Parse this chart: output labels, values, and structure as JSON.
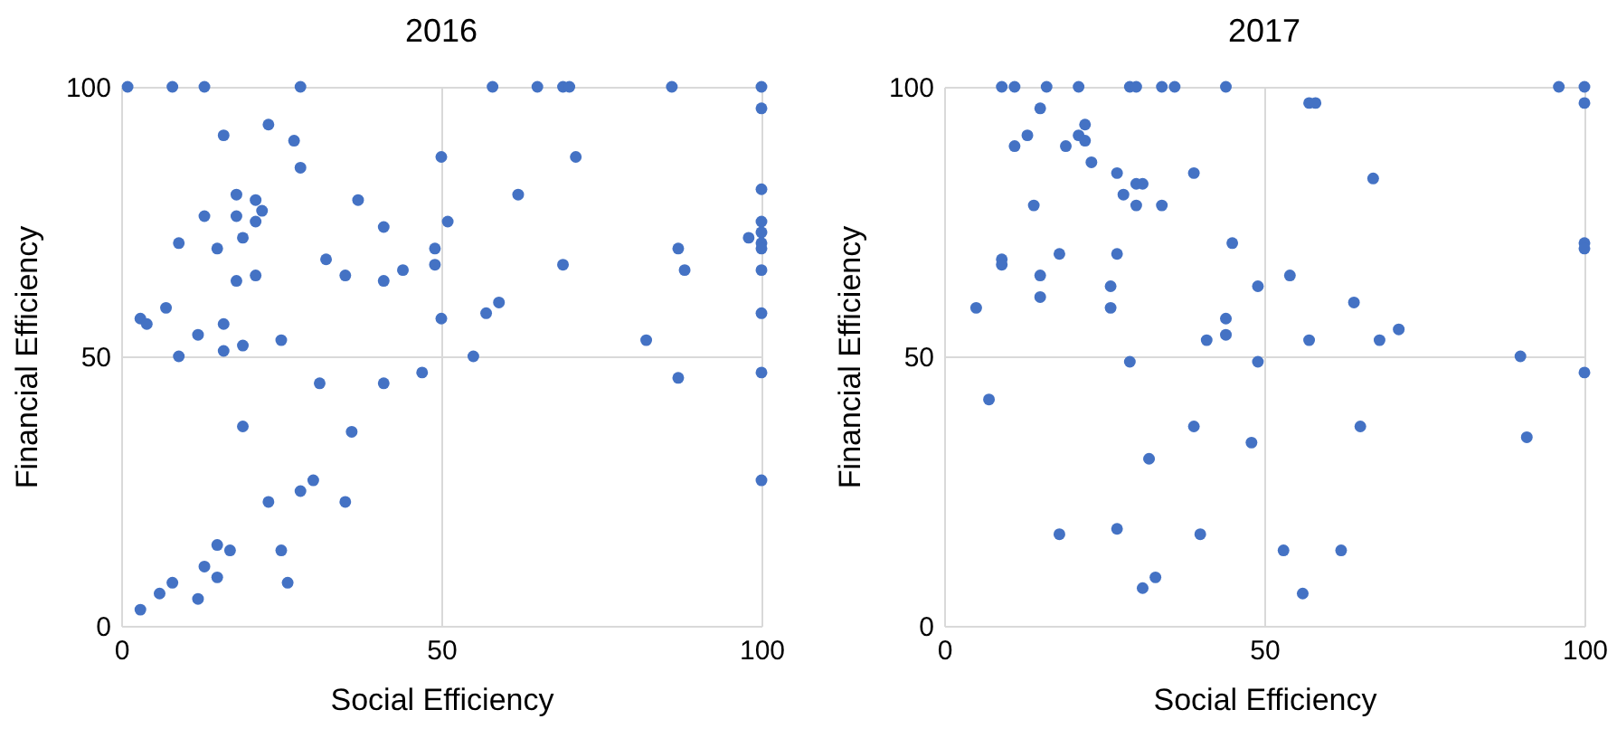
{
  "chart_data": [
    {
      "type": "scatter",
      "title": "2016",
      "xlabel": "Social Efficiency",
      "ylabel": "Financial Efficiency",
      "color": "#4472c4",
      "marker": "circle",
      "grid": true,
      "xlim": [
        0,
        100
      ],
      "ylim": [
        0,
        100
      ],
      "xticks": [
        0,
        50,
        100
      ],
      "yticks": [
        0,
        50,
        100
      ],
      "x": [
        1,
        8,
        13,
        28,
        58,
        65,
        69,
        70,
        86,
        100,
        100,
        16,
        23,
        27,
        50,
        71,
        28,
        18,
        62,
        100,
        21,
        37,
        13,
        18,
        22,
        21,
        41,
        51,
        100,
        100,
        98,
        100,
        100,
        9,
        19,
        15,
        87,
        49,
        32,
        49,
        69,
        88,
        100,
        35,
        44,
        21,
        41,
        18,
        7,
        3,
        4,
        16,
        50,
        57,
        59,
        100,
        12,
        25,
        82,
        16,
        19,
        9,
        55,
        31,
        41,
        47,
        87,
        100,
        19,
        36,
        100,
        30,
        28,
        23,
        35,
        15,
        17,
        25,
        13,
        15,
        8,
        6,
        12,
        26,
        3
      ],
      "values": [
        100,
        100,
        100,
        100,
        100,
        100,
        100,
        100,
        100,
        100,
        96,
        91,
        93,
        90,
        87,
        87,
        85,
        80,
        80,
        81,
        79,
        79,
        76,
        76,
        77,
        75,
        74,
        75,
        75,
        73,
        72,
        71,
        70,
        71,
        72,
        70,
        70,
        70,
        68,
        67,
        67,
        66,
        66,
        65,
        66,
        65,
        64,
        64,
        59,
        57,
        56,
        56,
        57,
        58,
        60,
        58,
        54,
        53,
        53,
        51,
        52,
        50,
        50,
        45,
        45,
        47,
        46,
        47,
        37,
        36,
        27,
        27,
        25,
        23,
        23,
        15,
        14,
        14,
        11,
        9,
        8,
        6,
        5,
        8,
        3
      ]
    },
    {
      "type": "scatter",
      "title": "2017",
      "xlabel": "Social Efficiency",
      "ylabel": "Financial Efficiency",
      "color": "#4472c4",
      "marker": "circle",
      "grid": true,
      "xlim": [
        0,
        100
      ],
      "ylim": [
        0,
        100
      ],
      "xticks": [
        0,
        50,
        100
      ],
      "yticks": [
        0,
        50,
        100
      ],
      "x": [
        9,
        11,
        16,
        21,
        29,
        30,
        34,
        36,
        44,
        96,
        100,
        100,
        57,
        58,
        15,
        22,
        21,
        22,
        13,
        11,
        19,
        23,
        27,
        39,
        67,
        30,
        31,
        28,
        30,
        34,
        14,
        45,
        100,
        100,
        18,
        27,
        9,
        9,
        15,
        54,
        26,
        49,
        15,
        64,
        26,
        5,
        44,
        44,
        41,
        57,
        68,
        71,
        90,
        29,
        49,
        100,
        7,
        39,
        65,
        48,
        91,
        32,
        18,
        27,
        40,
        53,
        62,
        33,
        31,
        56
      ],
      "values": [
        100,
        100,
        100,
        100,
        100,
        100,
        100,
        100,
        100,
        100,
        100,
        97,
        97,
        97,
        96,
        93,
        91,
        90,
        91,
        89,
        89,
        86,
        84,
        84,
        83,
        82,
        82,
        80,
        78,
        78,
        78,
        71,
        71,
        70,
        69,
        69,
        68,
        67,
        65,
        65,
        63,
        63,
        61,
        60,
        59,
        59,
        57,
        54,
        53,
        53,
        53,
        55,
        50,
        49,
        49,
        47,
        42,
        37,
        37,
        34,
        35,
        31,
        17,
        18,
        17,
        14,
        14,
        9,
        7,
        6
      ]
    }
  ]
}
